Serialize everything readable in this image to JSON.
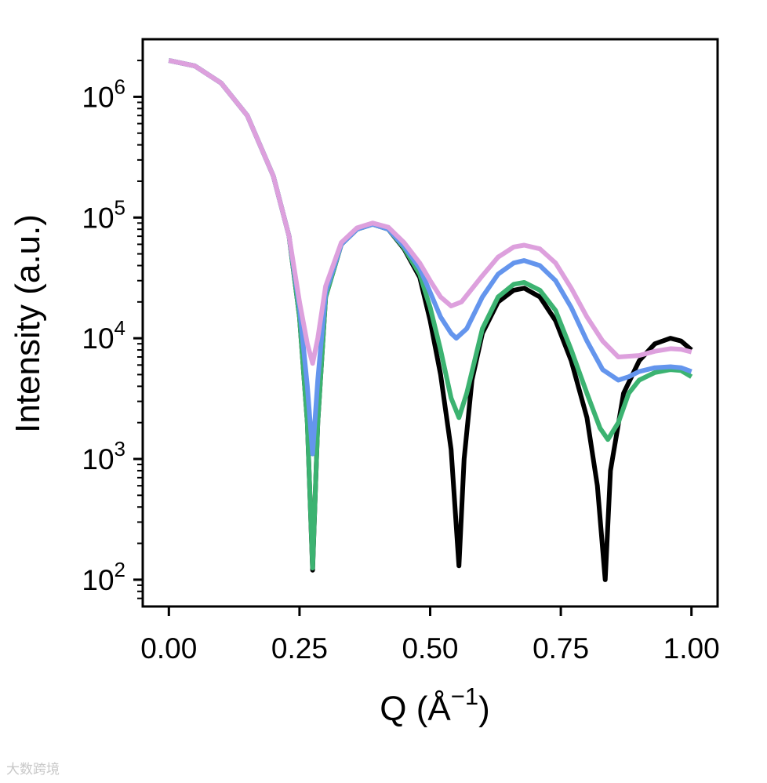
{
  "chart_data": {
    "type": "line",
    "xlabel": "Q (Å⁻¹)",
    "xlabel_parts": {
      "base": "Q (Å",
      "exp": "−1",
      "close": ")"
    },
    "ylabel": "Intensity (a.u.)",
    "xlim": [
      -0.05,
      1.05
    ],
    "ylim": [
      60,
      3000000
    ],
    "yscale": "log",
    "x_ticks": [
      {
        "value": 0.0,
        "label": "0.00"
      },
      {
        "value": 0.25,
        "label": "0.25"
      },
      {
        "value": 0.5,
        "label": "0.50"
      },
      {
        "value": 0.75,
        "label": "0.75"
      },
      {
        "value": 1.0,
        "label": "1.00"
      }
    ],
    "y_ticks": [
      {
        "value": 100,
        "base": "10",
        "exp": "2"
      },
      {
        "value": 1000,
        "base": "10",
        "exp": "3"
      },
      {
        "value": 10000,
        "base": "10",
        "exp": "4"
      },
      {
        "value": 100000,
        "base": "10",
        "exp": "5"
      },
      {
        "value": 1000000,
        "base": "10",
        "exp": "6"
      }
    ],
    "grid": false,
    "legend": "none",
    "series": [
      {
        "color": "#000000",
        "points": [
          [
            0.0,
            2000000
          ],
          [
            0.05,
            1800000
          ],
          [
            0.1,
            1300000
          ],
          [
            0.15,
            700000
          ],
          [
            0.2,
            220000
          ],
          [
            0.23,
            70000
          ],
          [
            0.25,
            15000
          ],
          [
            0.265,
            2000
          ],
          [
            0.275,
            120
          ],
          [
            0.285,
            2000
          ],
          [
            0.3,
            22000
          ],
          [
            0.33,
            60000
          ],
          [
            0.36,
            80000
          ],
          [
            0.39,
            88000
          ],
          [
            0.42,
            80000
          ],
          [
            0.45,
            55000
          ],
          [
            0.48,
            32000
          ],
          [
            0.5,
            14000
          ],
          [
            0.52,
            5000
          ],
          [
            0.54,
            1200
          ],
          [
            0.555,
            130
          ],
          [
            0.565,
            1000
          ],
          [
            0.58,
            4500
          ],
          [
            0.6,
            11000
          ],
          [
            0.63,
            20000
          ],
          [
            0.66,
            25000
          ],
          [
            0.68,
            26000
          ],
          [
            0.71,
            22000
          ],
          [
            0.74,
            14000
          ],
          [
            0.77,
            6500
          ],
          [
            0.8,
            2200
          ],
          [
            0.82,
            600
          ],
          [
            0.835,
            100
          ],
          [
            0.845,
            800
          ],
          [
            0.87,
            3500
          ],
          [
            0.9,
            6500
          ],
          [
            0.93,
            9000
          ],
          [
            0.96,
            10000
          ],
          [
            0.98,
            9500
          ],
          [
            1.0,
            8000
          ]
        ]
      },
      {
        "color": "#3cb371",
        "points": [
          [
            0.0,
            2000000
          ],
          [
            0.05,
            1800000
          ],
          [
            0.1,
            1300000
          ],
          [
            0.15,
            700000
          ],
          [
            0.2,
            220000
          ],
          [
            0.23,
            70000
          ],
          [
            0.25,
            15000
          ],
          [
            0.265,
            2000
          ],
          [
            0.275,
            125
          ],
          [
            0.285,
            2000
          ],
          [
            0.3,
            22000
          ],
          [
            0.33,
            60000
          ],
          [
            0.36,
            80000
          ],
          [
            0.39,
            88000
          ],
          [
            0.42,
            80000
          ],
          [
            0.45,
            56000
          ],
          [
            0.48,
            34000
          ],
          [
            0.5,
            18000
          ],
          [
            0.52,
            8000
          ],
          [
            0.54,
            3200
          ],
          [
            0.555,
            2200
          ],
          [
            0.57,
            3500
          ],
          [
            0.6,
            12000
          ],
          [
            0.63,
            22000
          ],
          [
            0.66,
            28000
          ],
          [
            0.68,
            29000
          ],
          [
            0.71,
            25000
          ],
          [
            0.74,
            17000
          ],
          [
            0.77,
            8000
          ],
          [
            0.8,
            3500
          ],
          [
            0.825,
            1800
          ],
          [
            0.84,
            1450
          ],
          [
            0.86,
            2000
          ],
          [
            0.88,
            3500
          ],
          [
            0.9,
            4500
          ],
          [
            0.93,
            5200
          ],
          [
            0.96,
            5500
          ],
          [
            0.98,
            5400
          ],
          [
            1.0,
            4800
          ]
        ]
      },
      {
        "color": "#6495ed",
        "points": [
          [
            0.0,
            2000000
          ],
          [
            0.05,
            1800000
          ],
          [
            0.1,
            1300000
          ],
          [
            0.15,
            700000
          ],
          [
            0.2,
            220000
          ],
          [
            0.23,
            70000
          ],
          [
            0.25,
            18000
          ],
          [
            0.265,
            4000
          ],
          [
            0.275,
            1100
          ],
          [
            0.285,
            4500
          ],
          [
            0.3,
            24000
          ],
          [
            0.33,
            60000
          ],
          [
            0.36,
            80000
          ],
          [
            0.39,
            88000
          ],
          [
            0.42,
            80000
          ],
          [
            0.45,
            58000
          ],
          [
            0.48,
            38000
          ],
          [
            0.5,
            24000
          ],
          [
            0.52,
            15000
          ],
          [
            0.54,
            11000
          ],
          [
            0.55,
            10000
          ],
          [
            0.57,
            12000
          ],
          [
            0.6,
            22000
          ],
          [
            0.63,
            34000
          ],
          [
            0.66,
            42000
          ],
          [
            0.68,
            44000
          ],
          [
            0.71,
            40000
          ],
          [
            0.74,
            30000
          ],
          [
            0.77,
            18000
          ],
          [
            0.8,
            9500
          ],
          [
            0.83,
            5500
          ],
          [
            0.86,
            4500
          ],
          [
            0.88,
            4800
          ],
          [
            0.9,
            5300
          ],
          [
            0.93,
            5700
          ],
          [
            0.96,
            5800
          ],
          [
            0.98,
            5700
          ],
          [
            1.0,
            5300
          ]
        ]
      },
      {
        "color": "#dda0dd",
        "points": [
          [
            0.0,
            2000000
          ],
          [
            0.05,
            1800000
          ],
          [
            0.1,
            1300000
          ],
          [
            0.15,
            700000
          ],
          [
            0.2,
            220000
          ],
          [
            0.23,
            70000
          ],
          [
            0.25,
            20000
          ],
          [
            0.265,
            9000
          ],
          [
            0.275,
            6200
          ],
          [
            0.285,
            10000
          ],
          [
            0.3,
            27000
          ],
          [
            0.33,
            62000
          ],
          [
            0.36,
            82000
          ],
          [
            0.39,
            90000
          ],
          [
            0.42,
            83000
          ],
          [
            0.45,
            62000
          ],
          [
            0.48,
            42000
          ],
          [
            0.5,
            30000
          ],
          [
            0.52,
            22000
          ],
          [
            0.54,
            18500
          ],
          [
            0.56,
            20000
          ],
          [
            0.6,
            33000
          ],
          [
            0.63,
            47000
          ],
          [
            0.66,
            57000
          ],
          [
            0.68,
            59000
          ],
          [
            0.71,
            55000
          ],
          [
            0.74,
            42000
          ],
          [
            0.77,
            26000
          ],
          [
            0.8,
            15000
          ],
          [
            0.83,
            9500
          ],
          [
            0.86,
            7000
          ],
          [
            0.9,
            7200
          ],
          [
            0.93,
            7800
          ],
          [
            0.96,
            8200
          ],
          [
            0.98,
            8100
          ],
          [
            1.0,
            7700
          ]
        ]
      }
    ]
  },
  "watermark": "大数跨境"
}
